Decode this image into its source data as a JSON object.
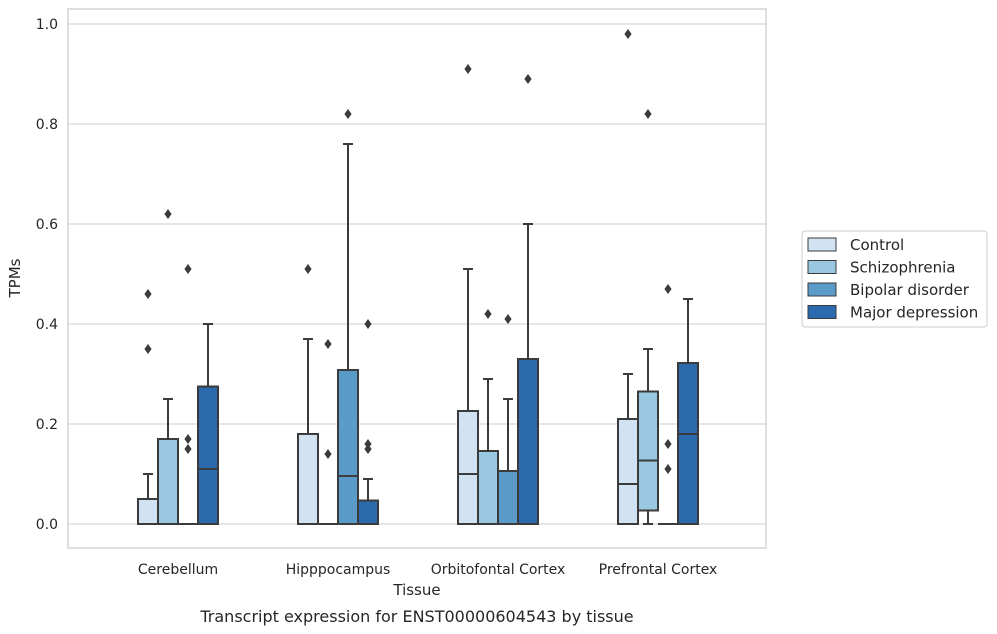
{
  "caption": "Transcript expression for ENST00000604543 by tissue",
  "chart_data": {
    "type": "box",
    "xlabel": "Tissue",
    "ylabel": "TPMs",
    "ylim": [
      -0.045,
      1.03
    ],
    "yticks": [
      0.0,
      0.2,
      0.4,
      0.6,
      0.8,
      1.0
    ],
    "ytick_labels": [
      "0.0",
      "0.2",
      "0.4",
      "0.6",
      "0.8",
      "1.0"
    ],
    "grid": true,
    "legend_position": "right",
    "categories": [
      "Cerebellum",
      "Hipppocampus",
      "Orbitofontal Cortex",
      "Prefrontal Cortex"
    ],
    "series": [
      {
        "name": "Control",
        "color": "#d1e2f2",
        "boxes": [
          {
            "min": 0.0,
            "q1": 0.0,
            "median": 0.0,
            "q3": 0.05,
            "max": 0.1,
            "outliers": [
              0.35,
              0.46
            ]
          },
          {
            "min": 0.0,
            "q1": 0.0,
            "median": 0.0,
            "q3": 0.18,
            "max": 0.37,
            "outliers": [
              0.51
            ]
          },
          {
            "min": 0.0,
            "q1": 0.0,
            "median": 0.1,
            "q3": 0.226,
            "max": 0.51,
            "outliers": [
              0.91
            ]
          },
          {
            "min": 0.0,
            "q1": 0.0,
            "median": 0.08,
            "q3": 0.21,
            "max": 0.3,
            "outliers": [
              0.98
            ]
          }
        ]
      },
      {
        "name": "Schizophrenia",
        "color": "#9ac8e0",
        "boxes": [
          {
            "min": 0.0,
            "q1": 0.0,
            "median": 0.0,
            "q3": 0.17,
            "max": 0.25,
            "outliers": [
              0.62
            ]
          },
          {
            "min": 0.0,
            "q1": 0.0,
            "median": 0.0,
            "q3": 0.0,
            "max": 0.0,
            "outliers": [
              0.14,
              0.36
            ]
          },
          {
            "min": 0.0,
            "q1": 0.0,
            "median": 0.0,
            "q3": 0.146,
            "max": 0.29,
            "outliers": [
              0.42
            ]
          },
          {
            "min": 0.0,
            "q1": 0.027,
            "median": 0.127,
            "q3": 0.265,
            "max": 0.35,
            "outliers": [
              0.82
            ]
          }
        ]
      },
      {
        "name": "Bipolar disorder",
        "color": "#5b9bc9",
        "boxes": [
          {
            "min": 0.0,
            "q1": 0.0,
            "median": 0.0,
            "q3": 0.0,
            "max": 0.0,
            "outliers": [
              0.15,
              0.17,
              0.51
            ]
          },
          {
            "min": 0.0,
            "q1": 0.0,
            "median": 0.096,
            "q3": 0.308,
            "max": 0.76,
            "outliers": [
              0.82
            ]
          },
          {
            "min": 0.0,
            "q1": 0.0,
            "median": 0.0,
            "q3": 0.106,
            "max": 0.25,
            "outliers": [
              0.41
            ]
          },
          {
            "min": 0.0,
            "q1": 0.0,
            "median": 0.0,
            "q3": 0.0,
            "max": 0.0,
            "outliers": [
              0.11,
              0.16,
              0.47
            ]
          }
        ]
      },
      {
        "name": "Major depression",
        "color": "#2a6aad",
        "boxes": [
          {
            "min": 0.0,
            "q1": 0.0,
            "median": 0.11,
            "q3": 0.275,
            "max": 0.4,
            "outliers": []
          },
          {
            "min": 0.0,
            "q1": 0.0,
            "median": 0.0,
            "q3": 0.047,
            "max": 0.09,
            "outliers": [
              0.15,
              0.16,
              0.4
            ]
          },
          {
            "min": 0.0,
            "q1": 0.0,
            "median": 0.0,
            "q3": 0.33,
            "max": 0.6,
            "outliers": [
              0.89
            ]
          },
          {
            "min": 0.0,
            "q1": 0.0,
            "median": 0.18,
            "q3": 0.322,
            "max": 0.45,
            "outliers": []
          }
        ]
      }
    ]
  }
}
